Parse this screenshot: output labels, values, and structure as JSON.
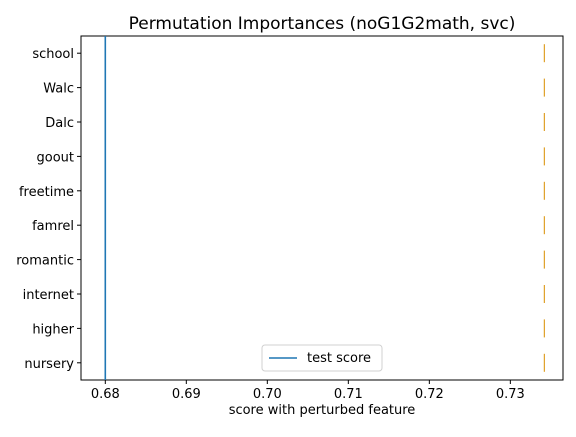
{
  "chart_data": {
    "type": "boxplot",
    "title": "Permutation Importances (noG1G2math, svc)",
    "xlabel": "score with perturbed feature",
    "ylabel": "",
    "xlim": [
      0.677,
      0.7365
    ],
    "xticks": [
      0.68,
      0.69,
      0.7,
      0.71,
      0.72,
      0.73
    ],
    "xtick_labels": [
      "0.68",
      "0.69",
      "0.70",
      "0.71",
      "0.72",
      "0.73"
    ],
    "categories": [
      "school",
      "Walc",
      "Dalc",
      "goout",
      "freetime",
      "famrel",
      "romantic",
      "internet",
      "higher",
      "nursery"
    ],
    "values": [
      0.7342,
      0.7342,
      0.7342,
      0.7342,
      0.7342,
      0.7342,
      0.7342,
      0.7342,
      0.7342,
      0.7342
    ],
    "test_score": 0.68,
    "legend": {
      "entries": [
        "test score"
      ],
      "placement": "bottom-center"
    },
    "colors": {
      "test_score_line": "#1f77b4",
      "feature_marks": "#dfa028",
      "axes": "#000000"
    },
    "grid": false
  }
}
